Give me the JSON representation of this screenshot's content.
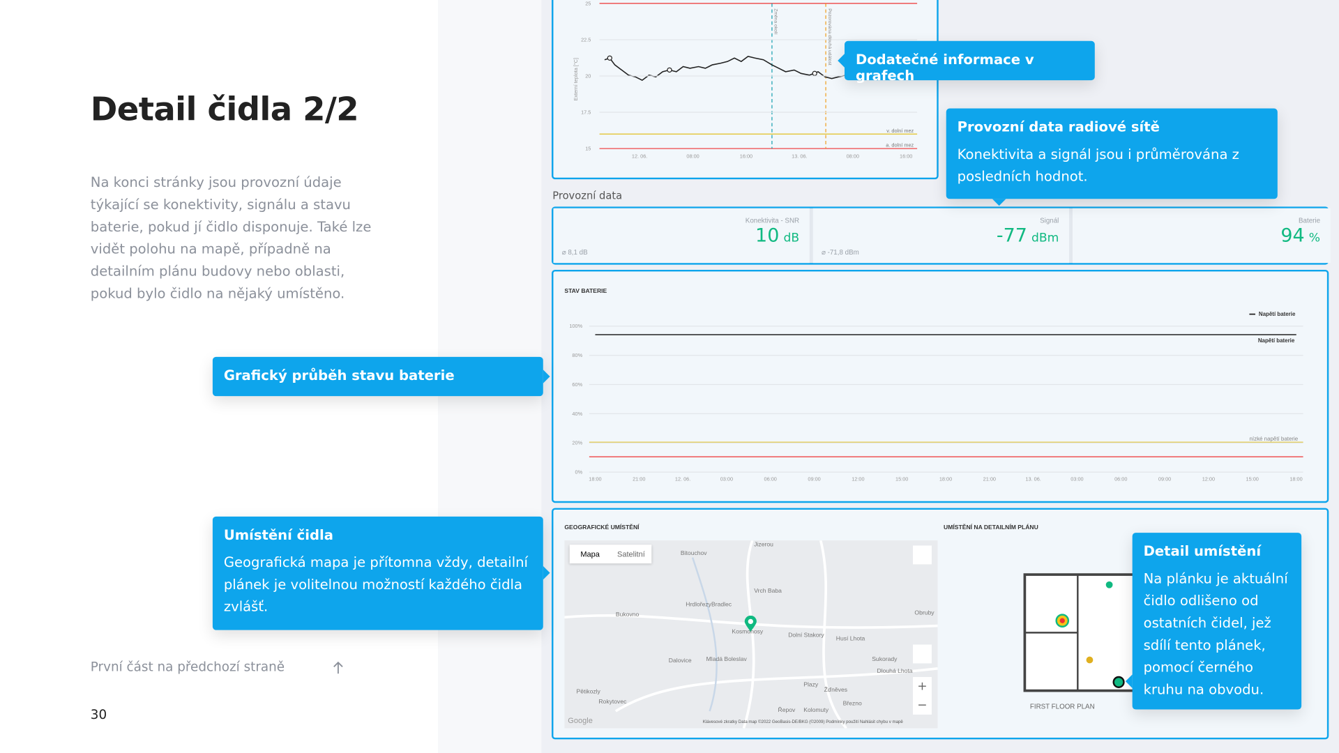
{
  "page": {
    "title": "Detail čidla 2/2",
    "description": "Na konci stránky jsou provozní údaje týkající se konektivity, signálu a stavu baterie, pokud jí čidlo disponuje. Také lze vidět polohu na mapě, případně na detailním plánu budovy nebo oblasti, pokud bylo čidlo na nějaký umístěno.",
    "prev_link": "První část na předchozí straně",
    "page_number": "30"
  },
  "callouts": [
    {
      "title": "Dodatečné informace v grafech"
    },
    {
      "title": "Provozní data radiové sítě",
      "text": "Konektivita a signál jsou i průměrována z posledních hodnot."
    },
    {
      "title": "Grafický průběh stavu baterie"
    },
    {
      "title": "Umístění čidla",
      "text": "Geografická mapa je přítomna vždy, detailní plánek je volitelnou možností každého čidla zvlášť."
    },
    {
      "title": "Detail umístění",
      "text": "Na plánku je aktuální čidlo odlišeno od ostatních čidel, jež sdílí tento plánek, pomocí černého kruhu na obvodu."
    }
  ],
  "temperature_chart": {
    "y_axis_label": "Externí teplota [°C]",
    "yticks": [
      "25",
      "22.5",
      "20",
      "17.5",
      "15"
    ],
    "xticks": [
      "12. 06.",
      "08:00",
      "16:00",
      "13. 06.",
      "08:00",
      "16:00"
    ],
    "limits": [
      "v. dolní mez",
      "a. dolní mez"
    ],
    "events": [
      "Změna okolí",
      "Pozorována dlouhá událost"
    ]
  },
  "operational_data": {
    "heading": "Provozní data",
    "cards": [
      {
        "label": "Konektivita - SNR",
        "value": 10,
        "unit": "dB",
        "average": "8,1 dB"
      },
      {
        "label": "Signál",
        "value": -77,
        "unit": "dBm",
        "average": "-71,8 dBm"
      },
      {
        "label": "Baterie",
        "value": 94,
        "unit": "%"
      }
    ]
  },
  "battery_chart": {
    "title": "STAV BATERIE",
    "legend": "Napětí baterie",
    "yticks": [
      "100%",
      "80%",
      "60%",
      "40%",
      "20%",
      "0%"
    ],
    "xticks": [
      "18:00",
      "21:00",
      "12. 06.",
      "03:00",
      "06:00",
      "09:00",
      "12:00",
      "15:00",
      "18:00",
      "21:00",
      "13. 06.",
      "03:00",
      "06:00",
      "09:00",
      "12:00",
      "15:00",
      "18:00"
    ],
    "line_label": "Napětí baterie",
    "low_label": "nízké napětí baterie"
  },
  "location": {
    "geo_title": "GEOGRAFICKÉ UMÍSTĚNÍ",
    "plan_title": "UMÍSTĚNÍ NA DETAILNÍM PLÁNU",
    "map_tabs": [
      "Mapa",
      "Satelitní"
    ],
    "places": [
      "Jizerou",
      "Bitouchov",
      "Vrch Baba",
      "Hrdlořezy",
      "Bradlec",
      "Bukovno",
      "Kosmonosy",
      "Dolní Stakory",
      "Husí Lhota",
      "Obruby",
      "Mladá Boleslav",
      "Dalovice",
      "Sukorady",
      "Dlouhá Lhota",
      "Plazy",
      "Žďněves",
      "Pětikozly",
      "Rokytovec",
      "Řepov",
      "Kolomuty",
      "Březno"
    ],
    "map_footer": "Klávesové zkratky   Data map ©2022 GeoBasis-DE/BKG (©2009)   Podmínky použití   Nahlásit chybu v mapě",
    "map_brand": "Google",
    "plan_label": "FIRST FLOOR PLAN"
  }
}
